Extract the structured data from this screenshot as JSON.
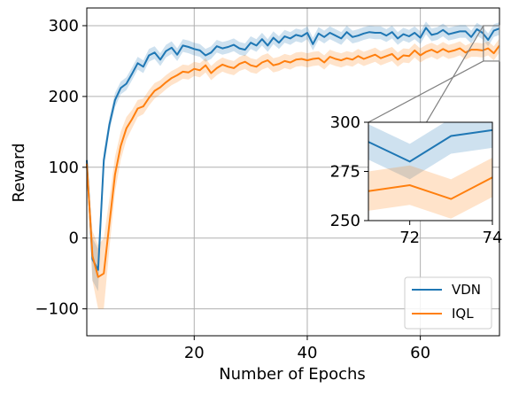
{
  "chart_data": {
    "type": "line",
    "xlabel": "Number of Epochs",
    "ylabel": "Reward",
    "xlim": [
      1,
      74
    ],
    "ylim": [
      -138,
      325
    ],
    "xticks": [
      20,
      40,
      60
    ],
    "yticks": [
      -100,
      0,
      100,
      200,
      300
    ],
    "xtick_labels": [
      "20",
      "40",
      "60"
    ],
    "ytick_labels": [
      "−100",
      "0",
      "100",
      "200",
      "300"
    ],
    "grid": true,
    "legend_position": "bottom-right",
    "colors": {
      "VDN": "#1f77b4",
      "IQL": "#ff7f0e",
      "zoom_box": "#808080",
      "grid": "#b0b0b0"
    },
    "x": [
      1,
      2,
      3,
      4,
      5,
      6,
      7,
      8,
      9,
      10,
      11,
      12,
      13,
      14,
      15,
      16,
      17,
      18,
      19,
      20,
      21,
      22,
      23,
      24,
      25,
      26,
      27,
      28,
      29,
      30,
      31,
      32,
      33,
      34,
      35,
      36,
      37,
      38,
      39,
      40,
      41,
      42,
      43,
      44,
      45,
      46,
      47,
      48,
      49,
      50,
      51,
      52,
      53,
      54,
      55,
      56,
      57,
      58,
      59,
      60,
      61,
      62,
      63,
      64,
      65,
      66,
      67,
      68,
      69,
      70,
      71,
      72,
      73,
      74
    ],
    "series": [
      {
        "name": "VDN",
        "values": [
          110,
          -30,
          -45,
          110,
          160,
          195,
          212,
          218,
          232,
          247,
          242,
          258,
          262,
          252,
          264,
          269,
          259,
          272,
          270,
          267,
          265,
          258,
          262,
          271,
          268,
          270,
          273,
          268,
          266,
          276,
          272,
          281,
          272,
          283,
          276,
          285,
          282,
          287,
          285,
          290,
          274,
          289,
          284,
          290,
          286,
          282,
          291,
          284,
          286,
          289,
          291,
          290,
          290,
          286,
          291,
          282,
          288,
          285,
          290,
          283,
          297,
          287,
          289,
          294,
          288,
          290,
          292,
          292,
          284,
          295,
          290,
          280,
          293,
          296
        ],
        "spread": [
          10,
          30,
          30,
          12,
          10,
          10,
          9,
          9,
          9,
          9,
          9,
          9,
          9,
          9,
          9,
          9,
          9,
          9,
          9,
          9,
          9,
          9,
          9,
          9,
          9,
          9,
          9,
          9,
          9,
          9,
          9,
          9,
          9,
          9,
          9,
          9,
          9,
          9,
          9,
          9,
          9,
          9,
          9,
          9,
          9,
          9,
          9,
          9,
          9,
          9,
          9,
          9,
          9,
          9,
          9,
          9,
          9,
          9,
          9,
          9,
          9,
          9,
          9,
          9,
          9,
          9,
          9,
          9,
          9,
          9,
          9,
          9,
          9,
          9
        ]
      },
      {
        "name": "IQL",
        "values": [
          105,
          -25,
          -55,
          -50,
          20,
          90,
          130,
          155,
          168,
          183,
          186,
          198,
          208,
          213,
          220,
          226,
          230,
          235,
          234,
          239,
          237,
          244,
          233,
          240,
          245,
          242,
          240,
          246,
          249,
          244,
          242,
          248,
          251,
          244,
          246,
          250,
          248,
          252,
          253,
          251,
          253,
          254,
          248,
          256,
          253,
          251,
          254,
          252,
          257,
          253,
          256,
          259,
          254,
          257,
          260,
          252,
          258,
          257,
          265,
          258,
          263,
          266,
          262,
          267,
          263,
          265,
          268,
          262,
          266,
          266,
          265,
          268,
          261,
          272
        ],
        "spread": [
          10,
          35,
          45,
          50,
          35,
          25,
          20,
          16,
          13,
          12,
          11,
          11,
          11,
          10,
          10,
          10,
          10,
          10,
          10,
          10,
          10,
          10,
          10,
          10,
          10,
          10,
          10,
          10,
          10,
          10,
          10,
          10,
          10,
          10,
          10,
          10,
          10,
          10,
          10,
          10,
          10,
          10,
          10,
          10,
          10,
          10,
          10,
          10,
          10,
          10,
          10,
          10,
          10,
          10,
          10,
          10,
          10,
          10,
          10,
          10,
          10,
          10,
          10,
          10,
          10,
          10,
          10,
          10,
          10,
          10,
          10,
          10,
          10,
          10
        ]
      }
    ],
    "inset": {
      "xlim": [
        71,
        74
      ],
      "ylim": [
        250,
        300
      ],
      "xticks": [
        72,
        74
      ],
      "yticks": [
        250,
        275,
        300
      ],
      "xtick_labels": [
        "72",
        "74"
      ],
      "ytick_labels": [
        "250",
        "275",
        "300"
      ],
      "grid": false
    }
  }
}
